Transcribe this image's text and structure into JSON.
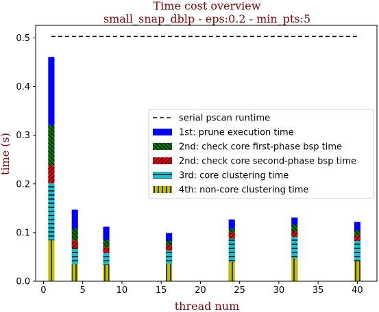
{
  "chart_data": {
    "type": "bar",
    "stacked": true,
    "title": "Time cost overview",
    "subtitle": "small_snap_dblp - eps:0.2 - min_pts:5",
    "xlabel": "thread num",
    "ylabel": "time (s)",
    "xlim": [
      -1.0,
      42.5
    ],
    "ylim": [
      0,
      0.526
    ],
    "xticks": [
      0,
      5,
      10,
      15,
      20,
      25,
      30,
      35,
      40
    ],
    "yticks": [
      0.0,
      0.1,
      0.2,
      0.3,
      0.4,
      0.5
    ],
    "x": [
      1,
      4,
      8,
      16,
      24,
      32,
      40
    ],
    "grid": false,
    "legend_position": "center-right",
    "reference_line": {
      "name": "serial pscan runtime",
      "value": 0.503,
      "x_range": [
        1,
        40
      ],
      "color": "#000000",
      "style": "dashed"
    },
    "series": [
      {
        "name": "4th: non-core clustering time",
        "color": "#bfbf00",
        "hatch": "vertical",
        "values": [
          0.084,
          0.035,
          0.034,
          0.036,
          0.04,
          0.047,
          0.041
        ]
      },
      {
        "name": "3rd: core clustering time",
        "color": "#17becf",
        "hatch": "horizontal",
        "values": [
          0.118,
          0.033,
          0.024,
          0.027,
          0.048,
          0.044,
          0.042
        ]
      },
      {
        "name": "2nd: check core second-phase bsp time",
        "color": "#ff0000",
        "hatch": "diagonal-up",
        "values": [
          0.036,
          0.016,
          0.012,
          0.011,
          0.012,
          0.011,
          0.011
        ]
      },
      {
        "name": "2nd: check core first-phase bsp time",
        "color": "#008000",
        "hatch": "diagonal-down",
        "values": [
          0.083,
          0.024,
          0.015,
          0.009,
          0.008,
          0.014,
          0.01
        ]
      },
      {
        "name": "1st: prune execution time",
        "color": "#0000ff",
        "hatch": "none",
        "values": [
          0.14,
          0.039,
          0.027,
          0.016,
          0.019,
          0.015,
          0.018
        ]
      }
    ],
    "legend_order": [
      "serial pscan runtime",
      "1st: prune execution time",
      "2nd: check core first-phase bsp time",
      "2nd: check core second-phase bsp time",
      "3rd: core clustering time",
      "4th: non-core clustering time"
    ],
    "colors": {
      "title": "#8b0000",
      "axis_label": "#8b0000",
      "axes": "#000000"
    }
  }
}
